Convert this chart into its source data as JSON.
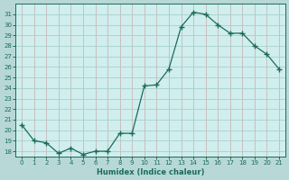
{
  "x": [
    0,
    1,
    2,
    3,
    4,
    5,
    6,
    7,
    8,
    9,
    10,
    11,
    12,
    13,
    14,
    15,
    16,
    17,
    18,
    19,
    20,
    21
  ],
  "y": [
    20.5,
    19.0,
    18.8,
    17.8,
    18.3,
    17.7,
    18.0,
    18.0,
    19.7,
    19.7,
    24.2,
    24.3,
    25.8,
    29.8,
    31.2,
    31.0,
    30.0,
    29.2,
    29.2,
    28.0,
    27.2,
    25.8
  ],
  "line_color": "#1a6b5a",
  "marker": "+",
  "marker_size": 4,
  "bg_color": "#b8d8d8",
  "plot_bg_color": "#d0eeee",
  "grid_color_v": "#c8b8b8",
  "grid_color_h": "#a8cece",
  "tick_color": "#1a6b5a",
  "label_color": "#1a6b5a",
  "xlabel": "Humidex (Indice chaleur)",
  "ylim": [
    17.5,
    32
  ],
  "xlim": [
    -0.5,
    21.5
  ],
  "yticks": [
    18,
    19,
    20,
    21,
    22,
    23,
    24,
    25,
    26,
    27,
    28,
    29,
    30,
    31
  ],
  "xticks": [
    0,
    1,
    2,
    3,
    4,
    5,
    6,
    7,
    8,
    9,
    10,
    11,
    12,
    13,
    14,
    15,
    16,
    17,
    18,
    19,
    20,
    21
  ]
}
